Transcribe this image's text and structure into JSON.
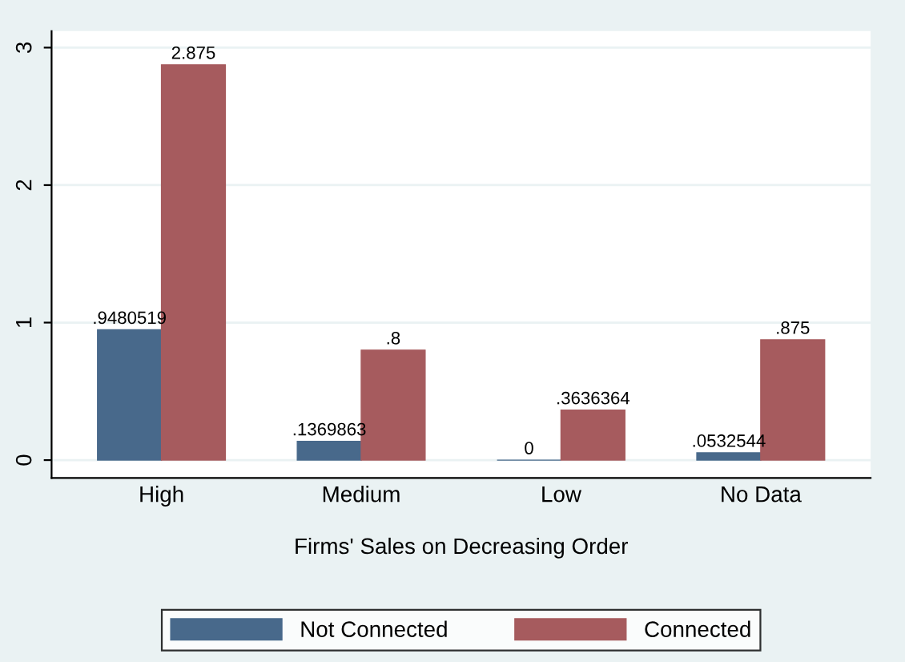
{
  "chart_data": {
    "type": "bar",
    "xlabel": "Firms' Sales on Decreasing Order",
    "categories": [
      "High",
      "Medium",
      "Low",
      "No Data"
    ],
    "series": [
      {
        "name": "Not Connected",
        "color": "#48698b",
        "values": [
          0.9480519,
          0.1369863,
          0,
          0.0532544
        ],
        "value_labels": [
          ".9480519",
          ".1369863",
          "0",
          ".0532544"
        ]
      },
      {
        "name": "Connected",
        "color": "#a65b5e",
        "values": [
          2.875,
          0.8,
          0.3636364,
          0.875
        ],
        "value_labels": [
          "2.875",
          ".8",
          ".3636364",
          ".875"
        ]
      }
    ],
    "ylim": [
      -0.13,
      3.12
    ],
    "yticks": [
      0,
      1,
      2,
      3
    ],
    "grid": "y",
    "legend": "bottom"
  }
}
